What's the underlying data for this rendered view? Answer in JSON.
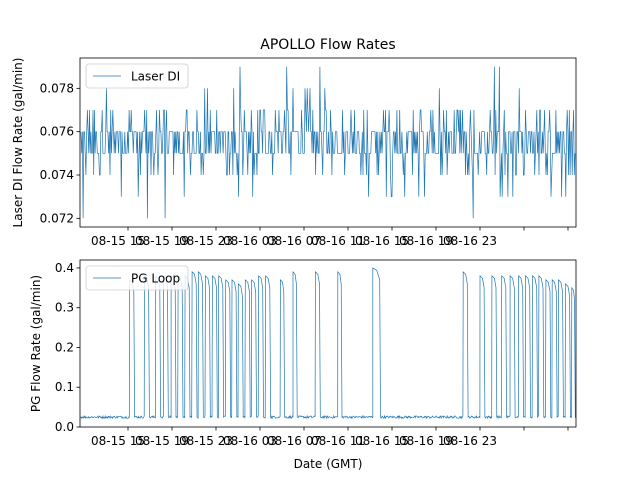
{
  "chart_data": [
    {
      "type": "line",
      "title": "APOLLO Flow Rates",
      "xlabel": "",
      "ylabel": "Laser DI Flow Rate (gal/min)",
      "x_ticks": [
        "08-15 15",
        "08-15 19",
        "08-15 23",
        "08-16 03",
        "08-16 07",
        "08-16 11",
        "08-16 15",
        "08-16 19",
        "08-16 23"
      ],
      "y_ticks": [
        "0.072",
        "0.074",
        "0.076",
        "0.078"
      ],
      "ylim": [
        0.0716,
        0.0794
      ],
      "xlim_hours": [
        11.6,
        47.0
      ],
      "legend": "Laser DI",
      "legend_position": "top-left",
      "color": "#1f77b4",
      "series": [
        {
          "name": "Laser DI",
          "description": "noisy signal quantized to 0.001 gal/min, mostly 0.075-0.076 with excursions 0.072-0.079",
          "levels": [
            0.072,
            0.073,
            0.074,
            0.075,
            0.076,
            0.077,
            0.078,
            0.079
          ],
          "typical_range": [
            0.075,
            0.076
          ]
        }
      ]
    },
    {
      "type": "line",
      "title": "",
      "xlabel": "Date (GMT)",
      "ylabel": "PG Flow Rate (gal/min)",
      "x_ticks": [
        "08-15 15",
        "08-15 19",
        "08-15 23",
        "08-16 03",
        "08-16 07",
        "08-16 11",
        "08-16 15",
        "08-16 19",
        "08-16 23"
      ],
      "y_ticks": [
        "0.0",
        "0.1",
        "0.2",
        "0.3",
        "0.4"
      ],
      "ylim": [
        0.0,
        0.42
      ],
      "xlim_hours": [
        11.6,
        47.0
      ],
      "legend": "PG Loop",
      "legend_position": "top-left",
      "color": "#1f77b4",
      "series": [
        {
          "name": "PG Loop",
          "baseline": 0.025,
          "pulses": [
            {
              "start": 15.15,
              "end": 15.5,
              "peak": 0.37
            },
            {
              "start": 16.2,
              "end": 16.55,
              "peak": 0.38
            },
            {
              "start": 17.0,
              "end": 17.35,
              "peak": 0.38
            },
            {
              "start": 17.55,
              "end": 17.9,
              "peak": 0.38
            },
            {
              "start": 18.1,
              "end": 18.45,
              "peak": 0.38
            },
            {
              "start": 18.6,
              "end": 18.95,
              "peak": 0.38
            },
            {
              "start": 19.1,
              "end": 19.45,
              "peak": 0.38
            },
            {
              "start": 19.6,
              "end": 19.95,
              "peak": 0.39
            },
            {
              "start": 20.05,
              "end": 20.4,
              "peak": 0.39
            },
            {
              "start": 20.55,
              "end": 20.9,
              "peak": 0.38
            },
            {
              "start": 21.05,
              "end": 21.4,
              "peak": 0.38
            },
            {
              "start": 21.5,
              "end": 21.85,
              "peak": 0.38
            },
            {
              "start": 22.0,
              "end": 22.35,
              "peak": 0.37
            },
            {
              "start": 22.45,
              "end": 22.8,
              "peak": 0.37
            },
            {
              "start": 22.9,
              "end": 23.25,
              "peak": 0.36
            },
            {
              "start": 23.4,
              "end": 23.75,
              "peak": 0.37
            },
            {
              "start": 23.85,
              "end": 24.2,
              "peak": 0.37
            },
            {
              "start": 24.35,
              "end": 24.7,
              "peak": 0.38
            },
            {
              "start": 24.85,
              "end": 25.2,
              "peak": 0.38
            },
            {
              "start": 25.9,
              "end": 26.2,
              "peak": 0.37
            },
            {
              "start": 26.8,
              "end": 27.1,
              "peak": 0.39
            },
            {
              "start": 28.4,
              "end": 28.75,
              "peak": 0.39
            },
            {
              "start": 30.0,
              "end": 30.3,
              "peak": 0.39
            },
            {
              "start": 32.5,
              "end": 33.05,
              "peak": 0.4
            },
            {
              "start": 38.95,
              "end": 39.3,
              "peak": 0.39
            },
            {
              "start": 40.15,
              "end": 40.5,
              "peak": 0.38
            },
            {
              "start": 41.0,
              "end": 41.35,
              "peak": 0.38
            },
            {
              "start": 41.7,
              "end": 42.05,
              "peak": 0.38
            },
            {
              "start": 42.3,
              "end": 42.65,
              "peak": 0.38
            },
            {
              "start": 42.9,
              "end": 43.25,
              "peak": 0.38
            },
            {
              "start": 43.4,
              "end": 43.75,
              "peak": 0.38
            },
            {
              "start": 43.9,
              "end": 44.25,
              "peak": 0.38
            },
            {
              "start": 44.35,
              "end": 44.7,
              "peak": 0.38
            },
            {
              "start": 44.85,
              "end": 45.2,
              "peak": 0.37
            },
            {
              "start": 45.3,
              "end": 45.65,
              "peak": 0.37
            },
            {
              "start": 45.75,
              "end": 46.1,
              "peak": 0.37
            },
            {
              "start": 46.25,
              "end": 46.6,
              "peak": 0.36
            },
            {
              "start": 46.7,
              "end": 46.95,
              "peak": 0.35
            }
          ]
        }
      ]
    }
  ]
}
